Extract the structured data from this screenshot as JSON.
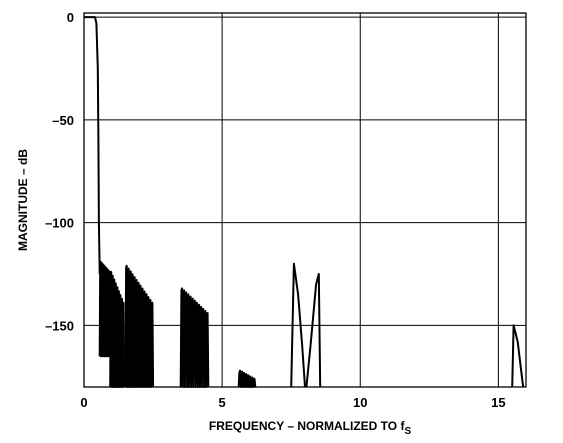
{
  "chart_data": {
    "type": "line",
    "xlabel": "FREQUENCY – NORMALIZED TO f",
    "xlabel_sub": "S",
    "ylabel": "MAGNITUDE – dB",
    "xlim": [
      0,
      16
    ],
    "ylim": [
      -180,
      2
    ],
    "grid": true,
    "x_ticks": [
      0,
      5,
      10,
      15
    ],
    "x_tick_labels": [
      "0",
      "5",
      "10",
      "15"
    ],
    "y_ticks": [
      0,
      -50,
      -100,
      -150
    ],
    "y_tick_labels": [
      "0",
      "–50",
      "–100",
      "–150"
    ],
    "passband": {
      "level": 0,
      "x_start": 0,
      "x_end": 0.4
    },
    "transition": [
      [
        0.4,
        0
      ],
      [
        0.45,
        -3
      ],
      [
        0.5,
        -25
      ],
      [
        0.52,
        -60
      ],
      [
        0.54,
        -100
      ],
      [
        0.56,
        -118
      ],
      [
        0.57,
        -125
      ]
    ],
    "lobe_clusters": [
      {
        "x_start": 0.57,
        "x_end": 0.95,
        "top_start": -120,
        "top_end": -125,
        "null": -165,
        "n": 9
      },
      {
        "x_start": 0.95,
        "x_end": 1.45,
        "top_start": -125,
        "top_end": -140,
        "null": -180,
        "n": 9
      },
      {
        "x_start": 1.5,
        "x_end": 2.5,
        "top_start": -122,
        "top_end": -140,
        "null": -180,
        "n": 14
      },
      {
        "x_start": 3.5,
        "x_end": 4.5,
        "top_start": -133,
        "top_end": -145,
        "null": -180,
        "n": 13
      },
      {
        "x_start": 5.6,
        "x_end": 6.2,
        "top_start": -173,
        "top_end": -177,
        "null": -180,
        "n": 8
      }
    ],
    "spike_lobes": [
      {
        "points": [
          [
            7.5,
            -180
          ],
          [
            7.6,
            -120
          ],
          [
            7.75,
            -135
          ],
          [
            7.9,
            -160
          ],
          [
            8.0,
            -180
          ]
        ]
      },
      {
        "points": [
          [
            8.05,
            -180
          ],
          [
            8.2,
            -160
          ],
          [
            8.4,
            -130
          ],
          [
            8.5,
            -125
          ],
          [
            8.55,
            -180
          ]
        ]
      },
      {
        "points": [
          [
            15.5,
            -180
          ],
          [
            15.55,
            -150
          ],
          [
            15.7,
            -158
          ],
          [
            15.85,
            -175
          ],
          [
            15.9,
            -180
          ]
        ]
      }
    ]
  }
}
